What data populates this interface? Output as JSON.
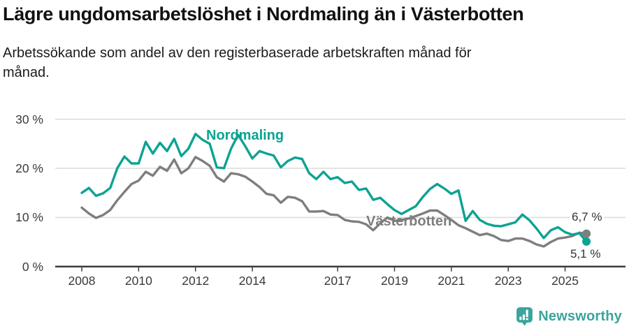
{
  "header": {
    "title": "Lägre ungdomsarbetslöshet i Nordmaling än i Västerbotten",
    "subtitle": "Arbetssökande som andel av den registerbaserade arbetskraften månad för månad."
  },
  "footer": {
    "brand": "Newsworthy",
    "brand_color": "#3aa49d",
    "logo_icon": "bar-chart-speech-bubble-icon"
  },
  "chart_data": {
    "type": "line",
    "title": "Lägre ungdomsarbetslöshet i Nordmaling än i Västerbotten",
    "subtitle": "Arbetssökande som andel av den registerbaserade arbetskraften månad för månad.",
    "unit": "%",
    "grid": "horizontal",
    "grid_color": "#dcdcdc",
    "axis_color": "#3c3c3c",
    "ylim": [
      0,
      30
    ],
    "y_ticks": [
      0,
      10,
      20,
      30
    ],
    "y_tick_labels": [
      "0 %",
      "10 %",
      "20 %",
      "30 %"
    ],
    "x_ticks": [
      2008,
      2010,
      2012,
      2014,
      2017,
      2019,
      2021,
      2023,
      2025
    ],
    "x_tick_labels": [
      "2008",
      "2010",
      "2012",
      "2014",
      "2017",
      "2019",
      "2021",
      "2023",
      "2025"
    ],
    "x_range": [
      2008.0,
      2025.75
    ],
    "x_start": 2008.0,
    "x_step": 0.25,
    "legend_position": "inline-labels",
    "series": [
      {
        "name": "Nordmaling",
        "color": "#0ca392",
        "end_label": "5,1 %",
        "end_value": 5.1,
        "values": [
          15.0,
          16.0,
          14.4,
          14.9,
          16.0,
          20.0,
          22.4,
          21.0,
          21.0,
          25.4,
          23.0,
          25.2,
          23.5,
          26.0,
          22.5,
          24.0,
          27.0,
          25.8,
          25.0,
          20.2,
          20.0,
          24.0,
          26.8,
          24.5,
          22.0,
          23.5,
          23.0,
          22.6,
          20.2,
          21.5,
          22.2,
          21.9,
          19.0,
          17.8,
          19.3,
          17.8,
          18.2,
          17.0,
          17.3,
          15.6,
          15.9,
          13.6,
          14.0,
          12.7,
          11.5,
          10.7,
          11.5,
          12.3,
          14.2,
          15.8,
          16.8,
          15.9,
          14.8,
          15.5,
          9.3,
          11.3,
          9.5,
          8.7,
          8.3,
          8.2,
          8.6,
          9.0,
          10.6,
          9.4,
          7.7,
          5.8,
          7.4,
          8.0,
          7.0,
          6.5,
          6.8,
          5.1
        ]
      },
      {
        "name": "Västerbotten",
        "color": "#7e7e7e",
        "end_label": "6,7 %",
        "end_value": 6.7,
        "values": [
          12.0,
          10.8,
          9.9,
          10.5,
          11.5,
          13.5,
          15.2,
          16.8,
          17.5,
          19.3,
          18.5,
          20.3,
          19.5,
          21.8,
          19.0,
          20.0,
          22.3,
          21.5,
          20.5,
          18.2,
          17.3,
          19.0,
          18.8,
          18.3,
          17.3,
          16.2,
          14.8,
          14.5,
          13.0,
          14.2,
          14.0,
          13.3,
          11.2,
          11.2,
          11.3,
          10.6,
          10.5,
          9.5,
          9.2,
          9.1,
          8.6,
          7.4,
          8.8,
          10.0,
          9.3,
          9.5,
          9.8,
          10.3,
          10.8,
          11.4,
          11.4,
          10.5,
          9.5,
          8.4,
          7.8,
          7.1,
          6.4,
          6.7,
          6.2,
          5.4,
          5.2,
          5.7,
          5.7,
          5.2,
          4.5,
          4.1,
          5.0,
          5.7,
          5.9,
          6.2,
          6.9,
          6.7
        ]
      }
    ]
  }
}
